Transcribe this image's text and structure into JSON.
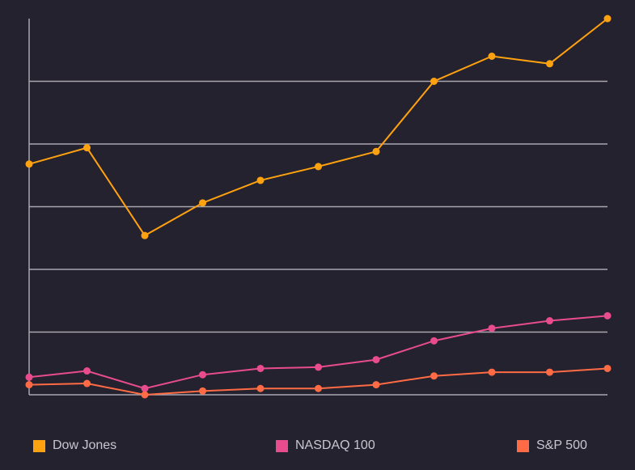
{
  "chart_data": {
    "type": "line",
    "title": "",
    "xlabel": "",
    "ylabel": "",
    "x": [
      1,
      2,
      3,
      4,
      5,
      6,
      7,
      8,
      9,
      10,
      11
    ],
    "ylim": [
      0,
      30
    ],
    "y_gridlines": [
      5,
      10,
      15,
      20,
      25
    ],
    "grid": true,
    "legend_position": "bottom",
    "series": [
      {
        "name": "Dow Jones",
        "color": "#ffa20f",
        "values": [
          18.4,
          19.7,
          12.7,
          15.3,
          17.1,
          18.2,
          19.4,
          25.0,
          27.0,
          26.4,
          30.0
        ]
      },
      {
        "name": "NASDAQ 100",
        "color": "#e84c8c",
        "values": [
          1.4,
          1.9,
          0.5,
          1.6,
          2.1,
          2.2,
          2.8,
          4.3,
          5.3,
          5.9,
          6.3
        ]
      },
      {
        "name": "S&P 500",
        "color": "#ff6b45",
        "values": [
          0.8,
          0.9,
          0.0,
          0.3,
          0.5,
          0.5,
          0.8,
          1.5,
          1.8,
          1.8,
          2.1
        ]
      }
    ]
  }
}
